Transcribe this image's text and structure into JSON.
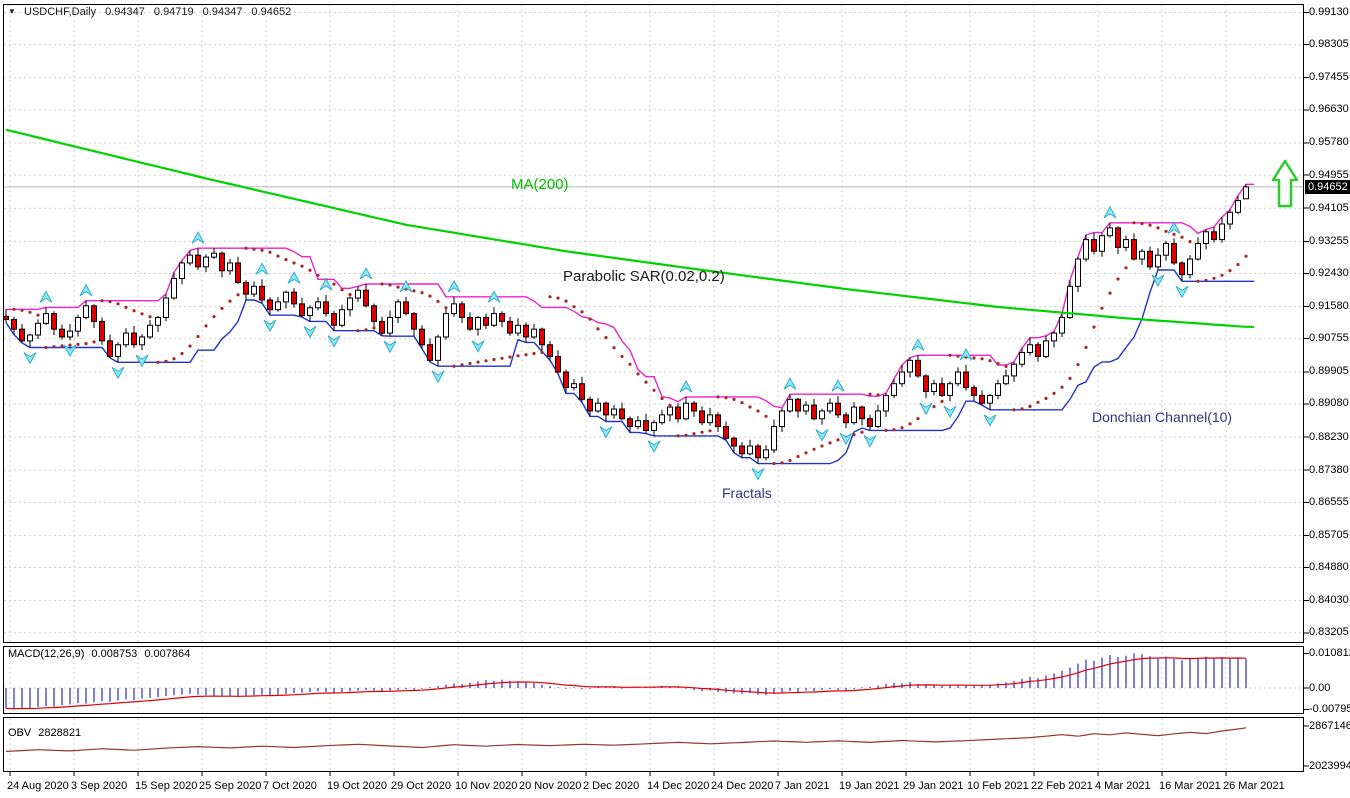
{
  "header": {
    "dropdown_glyph": "▼",
    "symbol": "USDCHF,Daily",
    "open": "0.94347",
    "high": "0.94719",
    "low": "0.94347",
    "close": "0.94652"
  },
  "indicators": {
    "ma_label": "MA(200)",
    "psar_label": "Parabolic SAR(0.02,0.2)",
    "donchian_label": "Donchian Channel(10)",
    "fractals_label": "Fractals",
    "macd_name": "MACD(12,26,9)",
    "macd_value": "0.008753",
    "macd_signal_value": "0.007864",
    "obv_name": "OBV",
    "obv_value": "2828821"
  },
  "price_tag": "0.94652",
  "colors": {
    "grid": "#CFCFCF",
    "axis": "#000000",
    "current_line": "#B8B8B8",
    "candle_bear": "#E00000",
    "candle_bull": "#FFFFFF",
    "candle_border": "#000000",
    "ma": "#00D200",
    "donchian_upper": "#EE22CC",
    "donchian_lower": "#2233CC",
    "psar": "#A52A2A",
    "fractal_fill": "#8FE8F8",
    "fractal_edge": "#35AECC",
    "macd_hist": "#0000C8",
    "macd_signal": "#E00000",
    "obv": "#953735",
    "arrow": "#2FCB2F",
    "tag_bg": "#000000",
    "tag_text": "#FFFFFF"
  },
  "chart_data": {
    "type": "candlestick",
    "title": "USDCHF Daily with MA(200), Parabolic SAR(0.02,0.2), Donchian Channel(10), Fractals, MACD(12,26,9), OBV",
    "symbol": "USDCHF",
    "timeframe": "Daily",
    "legend_position": "on-chart",
    "grid": true,
    "x_ticks": [
      "24 Aug 2020",
      "3 Sep 2020",
      "15 Sep 2020",
      "25 Sep 2020",
      "7 Oct 2020",
      "19 Oct 2020",
      "29 Oct 2020",
      "10 Nov 2020",
      "20 Nov 2020",
      "2 Dec 2020",
      "14 Dec 2020",
      "24 Dec 2020",
      "7 Jan 2021",
      "19 Jan 2021",
      "29 Jan 2021",
      "10 Feb 2021",
      "22 Feb 2021",
      "4 Mar 2021",
      "16 Mar 2021",
      "26 Mar 2021"
    ],
    "main_y_ticks": [
      "0.99130",
      "0.98305",
      "0.97455",
      "0.96630",
      "0.95780",
      "0.94955",
      "0.94105",
      "0.93255",
      "0.92430",
      "0.91580",
      "0.90755",
      "0.89905",
      "0.89080",
      "0.88230",
      "0.87380",
      "0.86555",
      "0.85705",
      "0.84880",
      "0.84030",
      "0.83205"
    ],
    "macd_y_ticks": [
      "0.010812",
      "0.00",
      "-0.007951"
    ],
    "obv_y_ticks": [
      "2867146",
      "2023994"
    ],
    "current_price": 0.94652,
    "last_bar": {
      "open": 0.94347,
      "high": 0.94719,
      "low": 0.94347,
      "close": 0.94652
    },
    "closes": [
      0.9125,
      0.91,
      0.907,
      0.9085,
      0.9115,
      0.914,
      0.91,
      0.908,
      0.9095,
      0.913,
      0.916,
      0.912,
      0.907,
      0.903,
      0.906,
      0.909,
      0.906,
      0.908,
      0.911,
      0.913,
      0.918,
      0.923,
      0.927,
      0.929,
      0.926,
      0.9285,
      0.9295,
      0.925,
      0.927,
      0.922,
      0.919,
      0.921,
      0.9175,
      0.915,
      0.917,
      0.9195,
      0.9165,
      0.9135,
      0.9155,
      0.917,
      0.914,
      0.911,
      0.915,
      0.918,
      0.92,
      0.916,
      0.912,
      0.909,
      0.913,
      0.917,
      0.914,
      0.91,
      0.906,
      0.902,
      0.908,
      0.914,
      0.9165,
      0.913,
      0.91,
      0.913,
      0.911,
      0.914,
      0.912,
      0.909,
      0.911,
      0.908,
      0.91,
      0.906,
      0.903,
      0.899,
      0.895,
      0.896,
      0.892,
      0.889,
      0.891,
      0.888,
      0.8895,
      0.887,
      0.885,
      0.8865,
      0.884,
      0.886,
      0.888,
      0.89,
      0.887,
      0.891,
      0.889,
      0.886,
      0.888,
      0.885,
      0.882,
      0.88,
      0.878,
      0.88,
      0.877,
      0.879,
      0.885,
      0.889,
      0.892,
      0.889,
      0.8905,
      0.887,
      0.889,
      0.891,
      0.888,
      0.886,
      0.89,
      0.887,
      0.885,
      0.889,
      0.893,
      0.896,
      0.899,
      0.902,
      0.898,
      0.894,
      0.896,
      0.893,
      0.896,
      0.899,
      0.895,
      0.893,
      0.891,
      0.893,
      0.896,
      0.898,
      0.901,
      0.904,
      0.906,
      0.903,
      0.907,
      0.909,
      0.913,
      0.921,
      0.928,
      0.933,
      0.93,
      0.934,
      0.936,
      0.931,
      0.933,
      0.928,
      0.93,
      0.926,
      0.929,
      0.932,
      0.927,
      0.924,
      0.928,
      0.932,
      0.935,
      0.933,
      0.937,
      0.94,
      0.943,
      0.9465
    ],
    "wick_high_pattern": [
      0.0018,
      0.0007,
      0.0013,
      0.0004,
      0.001,
      0.0016,
      0.0006,
      0.0012
    ],
    "wick_low_pattern": [
      0.0008,
      0.0014,
      0.0005,
      0.0017,
      0.001,
      0.0004,
      0.0015,
      0.0007
    ],
    "ma200_points": [
      [
        0,
        0.9612
      ],
      [
        25,
        0.9487
      ],
      [
        50,
        0.9368
      ],
      [
        70,
        0.93
      ],
      [
        87,
        0.9252
      ],
      [
        105,
        0.9203
      ],
      [
        124,
        0.9157
      ],
      [
        140,
        0.9128
      ],
      [
        155,
        0.9106
      ]
    ],
    "macd_histogram": [
      -0.0062,
      -0.0065,
      -0.006,
      -0.0063,
      -0.0058,
      -0.0055,
      -0.0057,
      -0.0052,
      -0.005,
      -0.0046,
      -0.0048,
      -0.0043,
      -0.004,
      -0.0042,
      -0.0038,
      -0.0035,
      -0.0037,
      -0.0032,
      -0.003,
      -0.0028,
      -0.0025,
      -0.0022,
      -0.002,
      -0.0018,
      -0.002,
      -0.0022,
      -0.0024,
      -0.0026,
      -0.0024,
      -0.0026,
      -0.0024,
      -0.0022,
      -0.002,
      -0.0022,
      -0.002,
      -0.0018,
      -0.0016,
      -0.0014,
      -0.0012,
      -0.001,
      -0.0012,
      -0.0014,
      -0.0012,
      -0.001,
      -0.0008,
      -0.0006,
      -0.0008,
      -0.001,
      -0.0008,
      -0.0006,
      -0.0004,
      -0.0006,
      -0.0002,
      0.0002,
      0.0006,
      0.001,
      0.0014,
      0.0012,
      0.0016,
      0.002,
      0.0024,
      0.0022,
      0.0025,
      0.0022,
      0.002,
      0.0018,
      0.0015,
      0.001,
      0.0006,
      0.0002,
      -0.0002,
      0.0002,
      -0.0004,
      -0.0002,
      0.0002,
      0.0004,
      0.0002,
      -0.0002,
      0.0002,
      0.0004,
      0.0002,
      0.0004,
      0.0006,
      0.0004,
      0.0002,
      -0.0002,
      -0.0006,
      -0.001,
      -0.0008,
      -0.0012,
      -0.0014,
      -0.0016,
      -0.0018,
      -0.0016,
      -0.002,
      -0.0022,
      -0.0018,
      -0.0014,
      -0.001,
      -0.0012,
      -0.0008,
      -0.001,
      -0.0006,
      -0.0004,
      -0.0006,
      -0.0008,
      -0.0004,
      0.0002,
      0.0004,
      0.0008,
      0.0012,
      0.0016,
      0.0014,
      0.0018,
      0.0012,
      0.001,
      0.0008,
      0.0006,
      0.0008,
      0.001,
      0.0008,
      0.0006,
      0.0008,
      0.001,
      0.0014,
      0.0018,
      0.0022,
      0.0028,
      0.0034,
      0.003,
      0.0038,
      0.0044,
      0.0052,
      0.0062,
      0.0074,
      0.0086,
      0.0082,
      0.0092,
      0.01,
      0.0094,
      0.0098,
      0.0105,
      0.0102,
      0.0096,
      0.0092,
      0.0095,
      0.0088,
      0.0084,
      0.0088,
      0.0092,
      0.0095,
      0.009,
      0.0093,
      0.0089,
      0.0091,
      0.0088
    ],
    "obv_points": [
      [
        0,
        2330000
      ],
      [
        4,
        2368000
      ],
      [
        8,
        2342000
      ],
      [
        12,
        2388000
      ],
      [
        16,
        2356000
      ],
      [
        20,
        2402000
      ],
      [
        24,
        2432000
      ],
      [
        28,
        2405000
      ],
      [
        32,
        2442000
      ],
      [
        36,
        2415000
      ],
      [
        40,
        2452000
      ],
      [
        44,
        2482000
      ],
      [
        48,
        2445000
      ],
      [
        52,
        2415000
      ],
      [
        56,
        2472000
      ],
      [
        60,
        2442000
      ],
      [
        64,
        2478000
      ],
      [
        68,
        2452000
      ],
      [
        72,
        2482000
      ],
      [
        76,
        2462000
      ],
      [
        80,
        2492000
      ],
      [
        84,
        2522000
      ],
      [
        88,
        2492000
      ],
      [
        92,
        2520000
      ],
      [
        96,
        2552000
      ],
      [
        100,
        2524000
      ],
      [
        104,
        2554000
      ],
      [
        108,
        2522000
      ],
      [
        112,
        2562000
      ],
      [
        116,
        2532000
      ],
      [
        120,
        2558000
      ],
      [
        124,
        2590000
      ],
      [
        128,
        2622000
      ],
      [
        132,
        2684000
      ],
      [
        134,
        2652000
      ],
      [
        136,
        2704000
      ],
      [
        138,
        2682000
      ],
      [
        140,
        2722000
      ],
      [
        142,
        2692000
      ],
      [
        144,
        2662000
      ],
      [
        146,
        2702000
      ],
      [
        148,
        2734000
      ],
      [
        150,
        2706000
      ],
      [
        152,
        2762000
      ],
      [
        154,
        2804000
      ],
      [
        155,
        2828821
      ]
    ]
  }
}
